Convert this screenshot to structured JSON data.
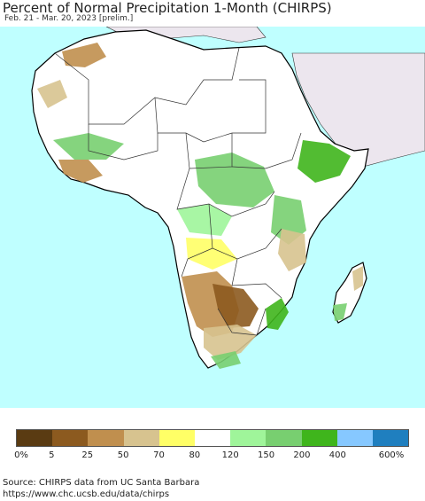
{
  "title": "Percent of Normal Precipitation 1-Month (CHIRPS)",
  "subtitle": "Feb. 21 - Mar. 20, 2023 [prelim.]",
  "colors": {
    "ocean": "#bfffff",
    "outside_land": "#ece6ee",
    "normal_land": "#ffffff",
    "borders": "#333333"
  },
  "legend": {
    "labels": [
      "0%",
      "5",
      "25",
      "50",
      "70",
      "80",
      "120",
      "150",
      "200",
      "400",
      "600%"
    ],
    "colors": [
      "#5a3b12",
      "#8c5a1f",
      "#c08f4e",
      "#d7c38f",
      "#ffff66",
      "#ffffff",
      "#9ff59a",
      "#78cf70",
      "#3fb51c",
      "#86c8ff",
      "#1f7fbf"
    ]
  },
  "source": {
    "line1": "Source: CHIRPS data from UC Santa Barbara",
    "line2": "https://www.chc.ucsb.edu/data/chirps"
  }
}
